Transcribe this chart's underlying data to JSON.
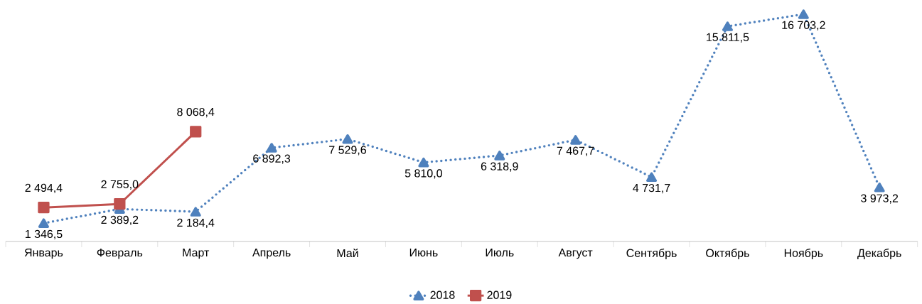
{
  "chart_data": {
    "type": "line",
    "categories": [
      "Январь",
      "Февраль",
      "Март",
      "Апрель",
      "Май",
      "Июнь",
      "Июль",
      "Август",
      "Сентябрь",
      "Октябрь",
      "Ноябрь",
      "Декабрь"
    ],
    "series": [
      {
        "name": "2018",
        "color": "#4f81bd",
        "marker": "triangle",
        "line_style": "dotted",
        "values": [
          1346.5,
          2389.2,
          2184.4,
          6892.3,
          7529.6,
          5810.0,
          6318.9,
          7467.7,
          4731.7,
          15811.5,
          16703.2,
          3973.2
        ],
        "value_labels": [
          "1 346,5",
          "2 389,2",
          "2 184,4",
          "6 892,3",
          "7 529,6",
          "5 810,0",
          "6 318,9",
          "7 467,7",
          "4 731,7",
          "15 811,5",
          "16 703,2",
          "3 973,2"
        ]
      },
      {
        "name": "2019",
        "color": "#c0504d",
        "marker": "square",
        "line_style": "solid",
        "values": [
          2494.4,
          2755.0,
          8068.4,
          null,
          null,
          null,
          null,
          null,
          null,
          null,
          null,
          null
        ],
        "value_labels": [
          "2 494,4",
          "2 755,0",
          "8 068,4",
          null,
          null,
          null,
          null,
          null,
          null,
          null,
          null,
          null
        ]
      }
    ],
    "legend": "bottom"
  }
}
